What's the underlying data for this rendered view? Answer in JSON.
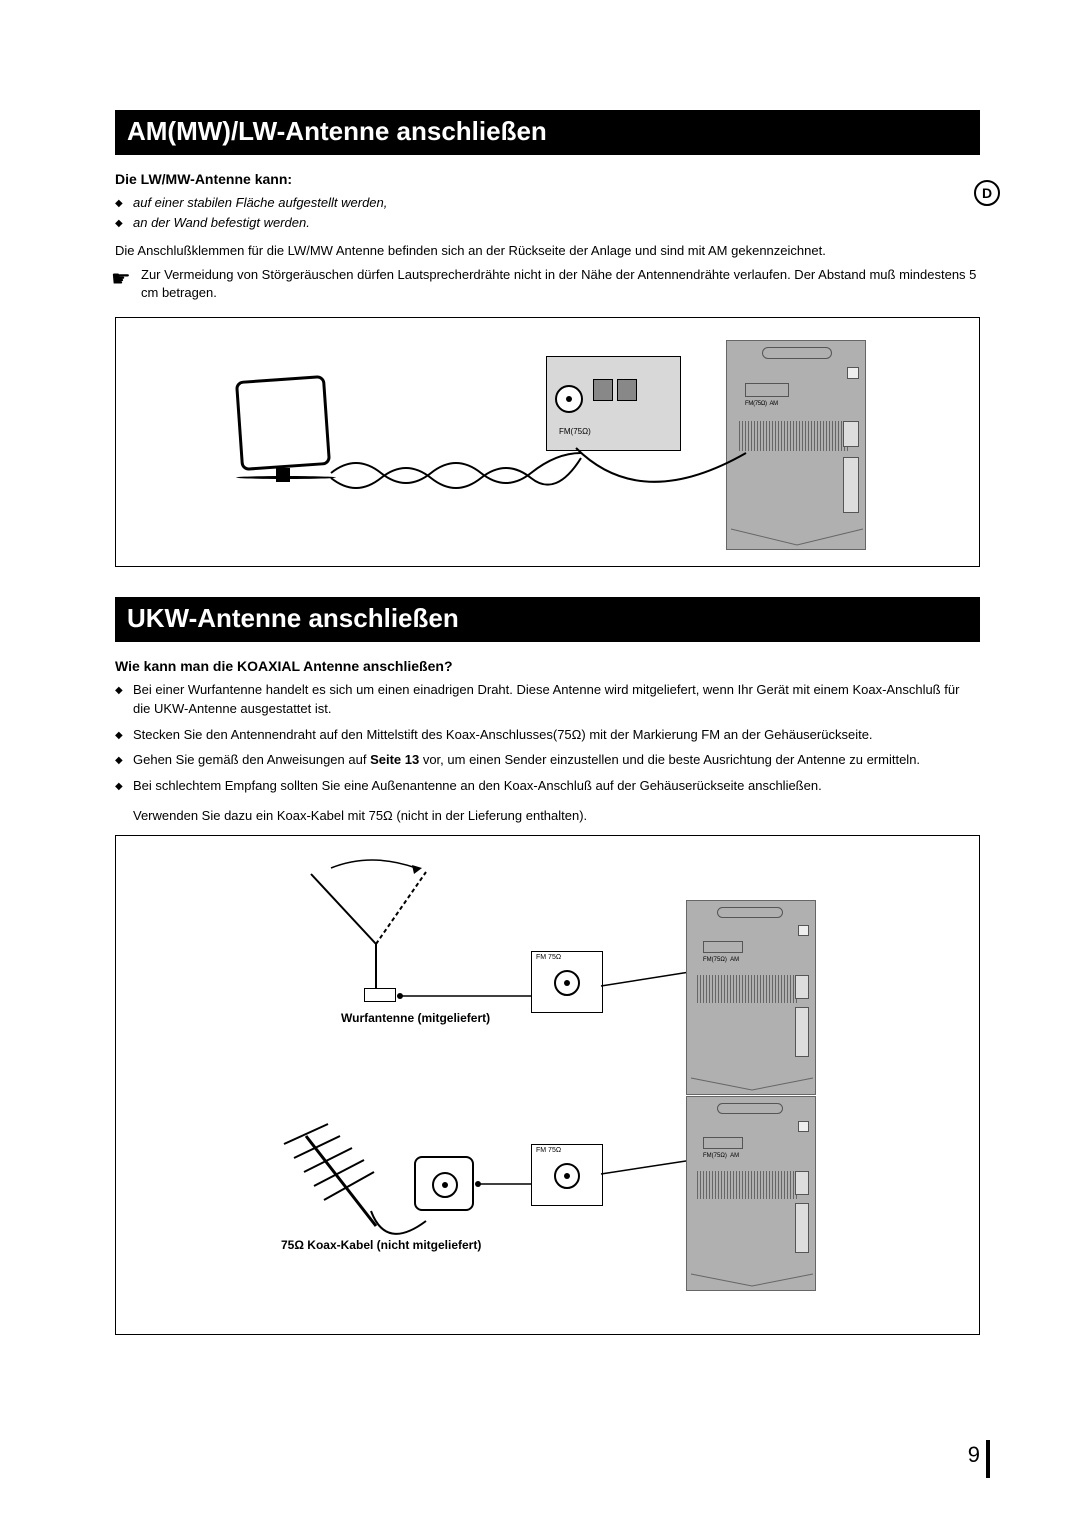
{
  "lang_badge": "D",
  "page_number": "9",
  "section1": {
    "title": "AM(MW)/LW-Antenne anschließen",
    "subhead": "Die LW/MW-Antenne kann:",
    "bullets": [
      "auf einer stabilen Fläche aufgestellt werden,",
      "an der Wand befestigt werden."
    ],
    "note": "Die Anschlußklemmen für die LW/MW Antenne befinden sich an der Rückseite der Anlage und sind mit AM gekennzeichnet.",
    "pointer_note": "Zur Vermeidung von Störgeräuschen dürfen Lautsprecherdrähte nicht in der Nähe der Antennendrähte verlaufen. Der Abstand muß mindestens 5 cm betragen.",
    "fig_fm_label": "FM(75Ω)"
  },
  "section2": {
    "title": "UKW-Antenne anschließen",
    "subhead": "Wie kann man die KOAXIAL Antenne anschließen?",
    "bullets": [
      "Bei einer Wurfantenne handelt es sich um einen einadrigen Draht. Diese Antenne wird mitgeliefert, wenn Ihr Gerät mit einem Koax-Anschluß für die UKW-Antenne ausgestattet ist.",
      "Stecken Sie den Antennendraht auf den Mittelstift des Koax-Anschlusses(75Ω) mit der Markierung FM an der Gehäuserückseite.",
      "Gehen Sie gemäß den Anweisungen auf <b>Seite 13</b> vor, um einen Sender einzustellen und die beste Ausrichtung der Antenne zu ermitteln.",
      "Bei schlechtem Empfang sollten Sie eine Außenantenne an den Koax-Anschluß auf der Gehäuserückseite anschließen."
    ],
    "extra": "Verwenden Sie dazu ein Koax-Kabel mit 75Ω (nicht in der Lieferung enthalten).",
    "fig_label1": "Wurfantenne (mitgeliefert)",
    "fig_label2": "75Ω Koax-Kabel (nicht mitgeliefert)",
    "term_label": "FM 75Ω"
  },
  "styles": {
    "section_bar_bg": "#000000",
    "section_bar_fg": "#ffffff",
    "device_bg": "#b0b0b0",
    "page_bg": "#ffffff",
    "body_font": "Arial, Helvetica, sans-serif",
    "section_title_fontsize": 26,
    "body_fontsize": 13
  }
}
